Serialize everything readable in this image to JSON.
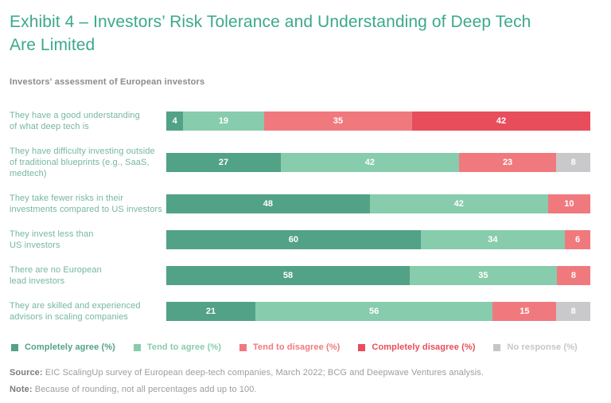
{
  "header": {
    "title": "Exhibit 4 – Investors’ Risk Tolerance and Understanding of Deep Tech\nAre Limited",
    "subtitle": "Investors' assessment of European investors"
  },
  "chart_data": {
    "type": "bar",
    "variant": "horizontal-stacked",
    "unit": "%",
    "xlim": [
      0,
      100
    ],
    "value_labels_shown": true,
    "series": [
      {
        "name": "Completely agree (%)",
        "color": "#52A287"
      },
      {
        "name": "Tend to agree (%)",
        "color": "#87CCAC"
      },
      {
        "name": "Tend to disagree (%)",
        "color": "#F0797E"
      },
      {
        "name": "Completely disagree (%)",
        "color": "#E84D5C"
      },
      {
        "name": "No response (%)",
        "color": "#C9C9CB"
      }
    ],
    "rows": [
      {
        "label": "They have a good understanding\nof what deep tech is",
        "values": [
          4,
          19,
          35,
          42,
          0
        ]
      },
      {
        "label": "They have difficulty investing outside\nof traditional blueprints (e.g., SaaS,\nmedtech)",
        "values": [
          27,
          42,
          23,
          0,
          8
        ]
      },
      {
        "label": "They take fewer risks in their\ninvestments compared to US investors",
        "values": [
          48,
          42,
          10,
          0,
          0
        ]
      },
      {
        "label": "They invest less than\nUS investors",
        "values": [
          60,
          34,
          6,
          0,
          0
        ]
      },
      {
        "label": "There are no European\nlead investors",
        "values": [
          58,
          35,
          8,
          0,
          0
        ]
      },
      {
        "label": "They are skilled and experienced\nadvisors in scaling companies",
        "values": [
          21,
          56,
          15,
          0,
          8
        ]
      }
    ]
  },
  "legend": {
    "items": [
      {
        "label": "Completely agree (%)",
        "color": "#52A287"
      },
      {
        "label": "Tend to agree (%)",
        "color": "#87CCAC"
      },
      {
        "label": "Tend to disagree (%)",
        "color": "#F0797E"
      },
      {
        "label": "Completely disagree (%)",
        "color": "#E84D5C"
      },
      {
        "label": "No response (%)",
        "color": "#C6C6C8"
      }
    ]
  },
  "footer": {
    "source_label": "Source:",
    "source_text": "EIC ScalingUp survey of European deep-tech companies, March 2022; BCG and Deepwave Ventures analysis.",
    "note_label": "Note:",
    "note_text": "Because of rounding, not all percentages add up to 100."
  }
}
